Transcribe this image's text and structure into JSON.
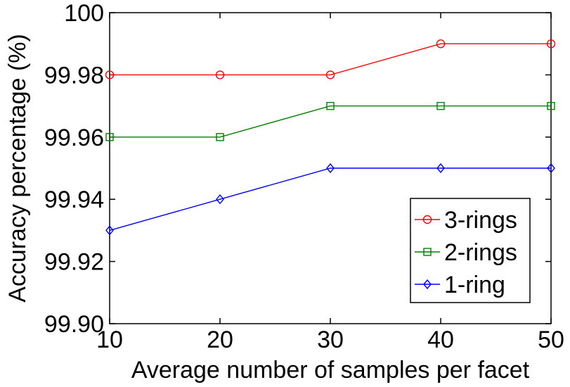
{
  "chart_data": {
    "type": "line",
    "title": "",
    "xlabel": "Average number of samples per facet",
    "ylabel": "Accuracy percentage (%)",
    "x": [
      10,
      20,
      30,
      40,
      50
    ],
    "xlim": [
      10,
      50
    ],
    "ylim": [
      99.9,
      100
    ],
    "xticks": [
      10,
      20,
      30,
      40,
      50
    ],
    "xtick_labels": [
      "10",
      "20",
      "30",
      "40",
      "50"
    ],
    "yticks": [
      99.9,
      99.92,
      99.94,
      99.96,
      99.98,
      100
    ],
    "ytick_labels": [
      "99.90",
      "99.92",
      "99.94",
      "99.96",
      "99.98",
      "100"
    ],
    "grid": false,
    "legend_position": "bottom-right",
    "series": [
      {
        "name": "3-rings",
        "color": "#ff0000",
        "marker": "circle",
        "values": [
          99.98,
          99.98,
          99.98,
          99.99,
          99.99
        ]
      },
      {
        "name": "2-rings",
        "color": "#008000",
        "marker": "square",
        "values": [
          99.96,
          99.96,
          99.97,
          99.97,
          99.97
        ]
      },
      {
        "name": "1-ring",
        "color": "#0000ff",
        "marker": "diamond",
        "values": [
          99.93,
          99.94,
          99.95,
          99.95,
          99.95
        ]
      }
    ]
  }
}
